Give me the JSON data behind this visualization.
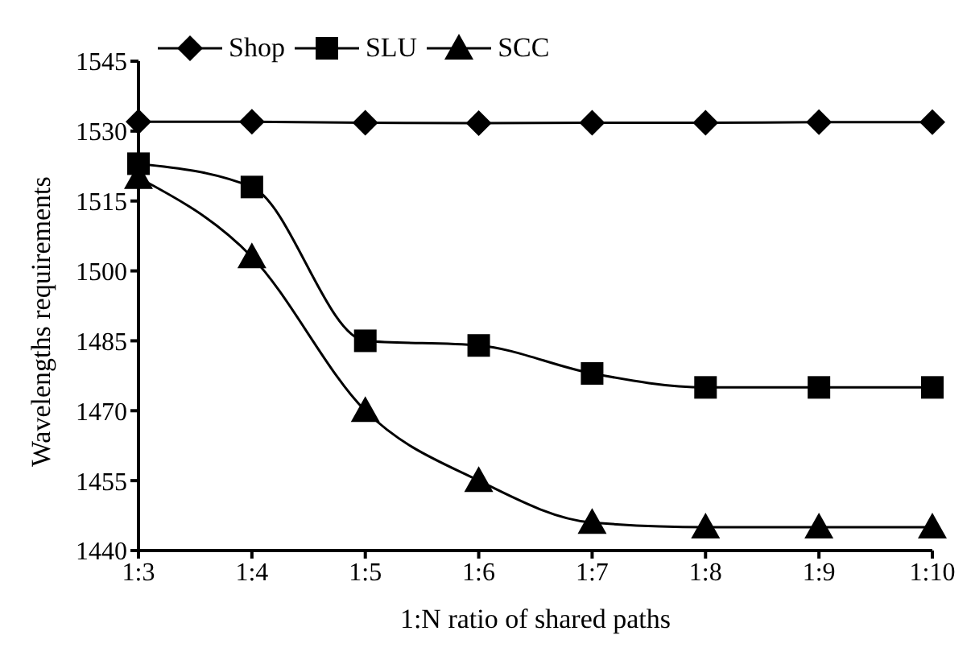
{
  "chart_data": {
    "type": "line",
    "xlabel": "1:N ratio of shared paths",
    "ylabel": "Wavelengths requirements",
    "categories": [
      "1:3",
      "1:4",
      "1:5",
      "1:6",
      "1:7",
      "1:8",
      "1:9",
      "1:10"
    ],
    "series": [
      {
        "name": "Shop",
        "color": "#000000",
        "marker": "diamond",
        "values": [
          1532,
          1532,
          1531.8,
          1531.7,
          1531.8,
          1531.8,
          1531.9,
          1531.9
        ]
      },
      {
        "name": "SLU",
        "color": "#000000",
        "marker": "square",
        "values": [
          1523,
          1518,
          1485,
          1484,
          1478,
          1475,
          1475,
          1475
        ]
      },
      {
        "name": "SCC",
        "color": "#000000",
        "marker": "triangle",
        "values": [
          1520,
          1503,
          1470,
          1455,
          1446,
          1445,
          1445,
          1445
        ]
      }
    ],
    "ylim": [
      1440,
      1545
    ],
    "yticks": [
      1440,
      1455,
      1470,
      1485,
      1500,
      1515,
      1530,
      1545
    ],
    "grid": false,
    "legend": "top left",
    "line_style": "solid"
  }
}
